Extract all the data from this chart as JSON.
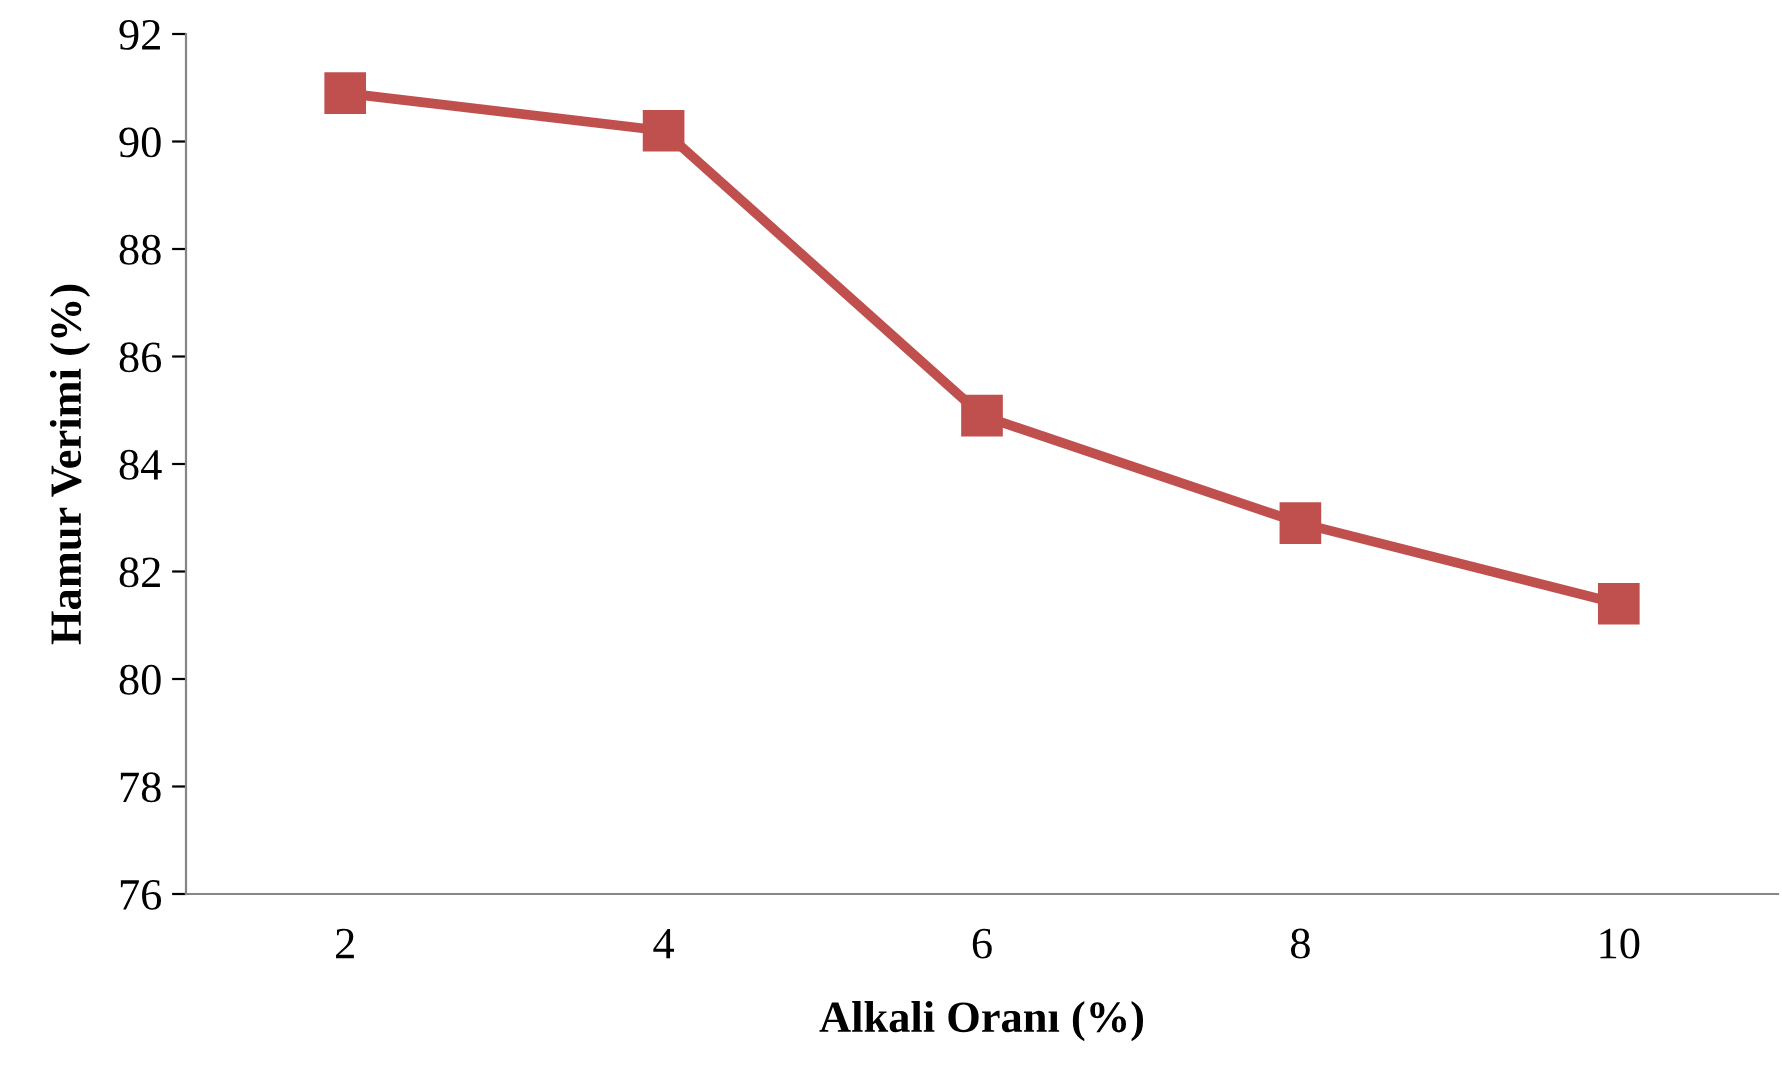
{
  "chart_data": {
    "type": "line",
    "xlabel": "Alkali Oranı (%)",
    "ylabel": "Hamur Verimi (%)",
    "categories": [
      "2",
      "4",
      "6",
      "8",
      "10"
    ],
    "series": [
      {
        "color": "#c0504d",
        "values": [
          90.9,
          90.2,
          84.9,
          82.9,
          81.4
        ]
      }
    ],
    "ylim": [
      76,
      92
    ],
    "yticks": [
      76,
      78,
      80,
      82,
      84,
      86,
      88,
      90,
      92
    ],
    "marker": "square",
    "line_style": "solid",
    "grid": false
  }
}
